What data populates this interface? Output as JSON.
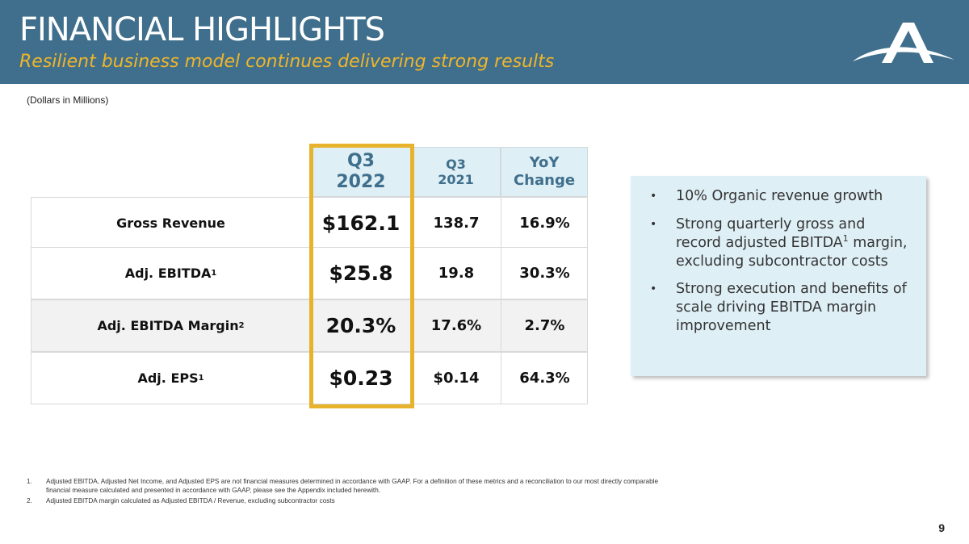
{
  "header": {
    "title": "FINANCIAL HIGHLIGHTS",
    "subtitle": "Resilient business model continues delivering strong results"
  },
  "units_note": "(Dollars in Millions)",
  "table": {
    "columns": [
      {
        "line1": "Q3",
        "line2": "2022"
      },
      {
        "line1": "Q3",
        "line2": "2021"
      },
      {
        "line1": "YoY",
        "line2": "Change"
      }
    ],
    "rows": [
      {
        "label": "Gross Revenue",
        "sup": "",
        "current": "$162.1",
        "prior": "138.7",
        "change": "16.9%"
      },
      {
        "label": "Adj. EBITDA",
        "sup": "1",
        "current": "$25.8",
        "prior": "19.8",
        "change": "30.3%"
      },
      {
        "label": "Adj. EBITDA Margin",
        "sup": "2",
        "current": "20.3%",
        "prior": "17.6%",
        "change": "2.7%"
      },
      {
        "label": "Adj. EPS",
        "sup": "1",
        "current": "$0.23",
        "prior": "$0.14",
        "change": "64.3%"
      }
    ]
  },
  "callout": {
    "bullet_glyph": "•",
    "bullets": [
      {
        "text": "10% Organic revenue growth",
        "sup": "",
        "tail": ""
      },
      {
        "text": "Strong quarterly gross and record adjusted EBITDA",
        "sup": "1",
        "tail": " margin, excluding subcontractor costs"
      },
      {
        "text": "Strong execution and benefits of scale driving EBITDA margin improvement",
        "sup": "",
        "tail": ""
      }
    ]
  },
  "footnotes": [
    {
      "num": "1.",
      "text": "Adjusted EBITDA, Adjusted Net Income, and Adjusted EPS are not financial measures determined in accordance with GAAP. For a definition of these metrics and a reconciliation to our most directly comparable financial measure calculated and presented in accordance with GAAP, please see the Appendix included herewith."
    },
    {
      "num": "2.",
      "text": "Adjusted EBITDA margin calculated as Adjusted EBITDA / Revenue, excluding subcontractor costs"
    }
  ],
  "page_number": "9",
  "colors": {
    "header_bg": "#3f6f8c",
    "subtitle": "#f0b52a",
    "highlight_border": "#e8b32c",
    "callout_bg": "#deeff5",
    "row_alt": "#f2f2f2"
  }
}
